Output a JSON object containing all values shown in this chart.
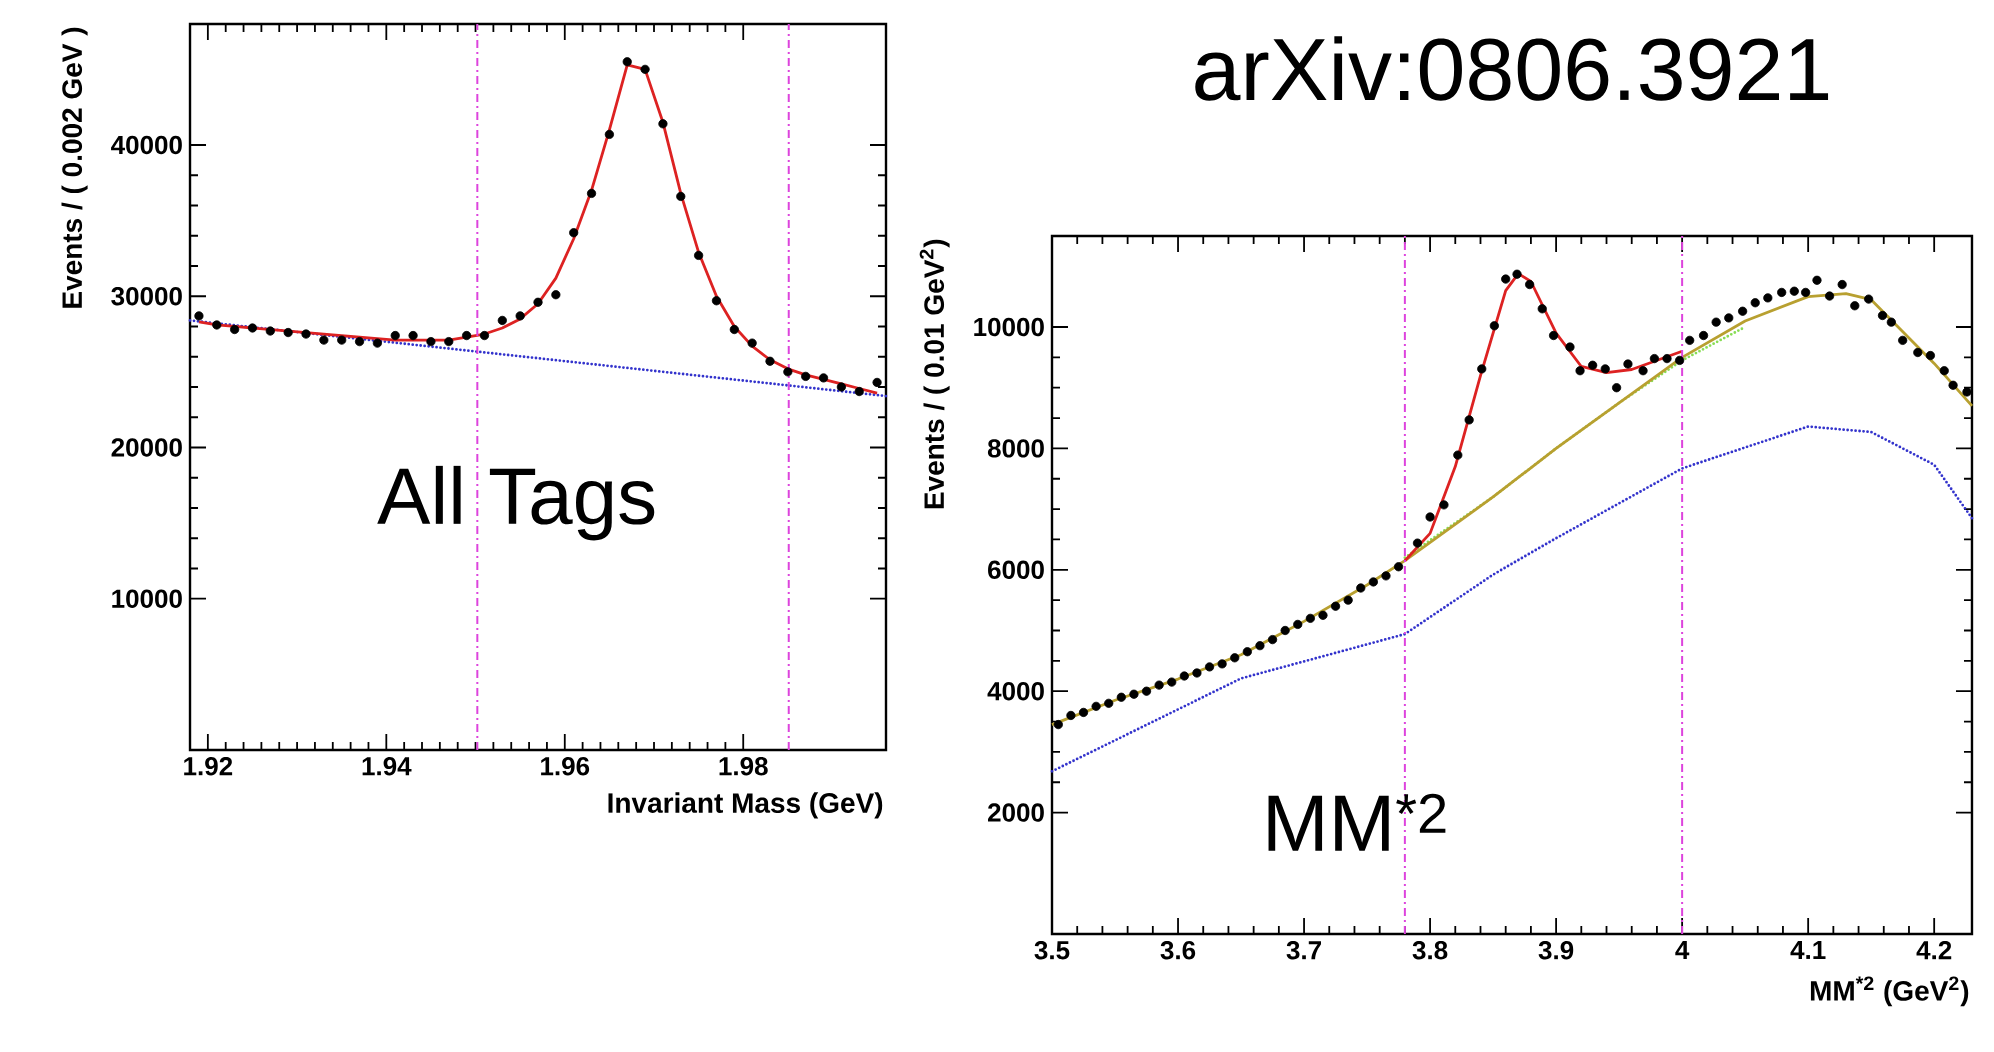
{
  "chart_data": [
    {
      "type": "scatter",
      "xlabel": "Invariant Mass (GeV)",
      "ylabel": "Events / ( 0.002 GeV )",
      "xlim": [
        1.918,
        1.996
      ],
      "ylim": [
        0,
        48000
      ],
      "xticks": [
        1.92,
        1.94,
        1.96,
        1.98
      ],
      "yticks": [
        10000,
        20000,
        30000,
        40000
      ],
      "annotations": [
        "All Tags"
      ],
      "ref_lines": [
        {
          "axis": "x",
          "value": 1.9502,
          "color": "#dd44dd",
          "line_style": "dashed"
        },
        {
          "axis": "x",
          "value": 1.9851,
          "color": "#dd44dd",
          "line_style": "dashed"
        }
      ],
      "series": [
        {
          "type": "line",
          "color": "#3333cc",
          "line_style": "dotted",
          "marker": "none",
          "x": [
            1.918,
            1.957,
            1.996
          ],
          "values": [
            28400,
            25900,
            23400
          ]
        },
        {
          "type": "line",
          "color": "#dd2222",
          "line_style": "solid",
          "marker": "none",
          "x": [
            1.919,
            1.921,
            1.923,
            1.925,
            1.927,
            1.929,
            1.931,
            1.933,
            1.935,
            1.937,
            1.939,
            1.941,
            1.943,
            1.945,
            1.947,
            1.949,
            1.951,
            1.953,
            1.955,
            1.957,
            1.959,
            1.961,
            1.963,
            1.965,
            1.967,
            1.969,
            1.971,
            1.973,
            1.975,
            1.977,
            1.979,
            1.981,
            1.983,
            1.985,
            1.987,
            1.989,
            1.991,
            1.993,
            1.995
          ],
          "values": [
            28300,
            28100,
            28000,
            27900,
            27800,
            27700,
            27600,
            27500,
            27400,
            27300,
            27200,
            27100,
            27100,
            27100,
            27100,
            27300,
            27500,
            27900,
            28500,
            29500,
            31200,
            33800,
            37000,
            41000,
            45300,
            45000,
            41500,
            36800,
            32900,
            30000,
            28000,
            26700,
            25800,
            25200,
            24800,
            24500,
            24200,
            23900,
            23600
          ]
        },
        {
          "type": "scatter",
          "color": "#000000",
          "marker": "circle",
          "x": [
            1.919,
            1.921,
            1.923,
            1.925,
            1.927,
            1.929,
            1.931,
            1.933,
            1.935,
            1.937,
            1.939,
            1.941,
            1.943,
            1.945,
            1.947,
            1.949,
            1.951,
            1.953,
            1.955,
            1.957,
            1.959,
            1.961,
            1.963,
            1.965,
            1.967,
            1.969,
            1.971,
            1.973,
            1.975,
            1.977,
            1.979,
            1.981,
            1.983,
            1.985,
            1.987,
            1.989,
            1.991,
            1.993,
            1.995
          ],
          "values": [
            28700,
            28100,
            27800,
            27900,
            27700,
            27600,
            27500,
            27100,
            27100,
            27000,
            26900,
            27400,
            27400,
            27000,
            27000,
            27400,
            27400,
            28400,
            28700,
            29600,
            30100,
            34200,
            36800,
            40700,
            45500,
            45000,
            41400,
            36600,
            32700,
            29700,
            27800,
            26900,
            25700,
            25000,
            24700,
            24600,
            24000,
            23700,
            24300
          ]
        }
      ]
    },
    {
      "type": "scatter",
      "xlabel": "MM$^{*2}$  (GeV$^{2}$)",
      "ylabel": "Events / ( 0.01 GeV$^{2}$)",
      "xlim": [
        3.5,
        4.23
      ],
      "ylim": [
        0,
        11500
      ],
      "xticks": [
        3.5,
        3.6,
        3.7,
        3.8,
        3.9,
        4,
        4.1,
        4.2
      ],
      "yticks": [
        2000,
        4000,
        6000,
        8000,
        10000
      ],
      "annotations": [
        "MM$^{*2}$",
        "arXiv:0806.3921"
      ],
      "ref_lines": [
        {
          "axis": "x",
          "value": 3.78,
          "color": "#dd44dd",
          "line_style": "dashed"
        },
        {
          "axis": "x",
          "value": 4.0,
          "color": "#dd44dd",
          "line_style": "dashed"
        }
      ],
      "series": [
        {
          "type": "line",
          "color": "#3333cc",
          "line_style": "dotted",
          "marker": "none",
          "x": [
            3.5,
            3.65,
            3.78,
            3.85,
            3.9,
            4.0,
            4.1,
            4.15,
            4.2,
            4.23
          ],
          "values": [
            2680,
            4210,
            4940,
            5920,
            6520,
            7670,
            8360,
            8270,
            7730,
            6850
          ]
        },
        {
          "type": "line",
          "color": "#88dd55",
          "line_style": "dotted",
          "marker": "none",
          "x": [
            3.78,
            3.85,
            3.9,
            3.95,
            4.0,
            4.05
          ],
          "values": [
            6200,
            7200,
            8000,
            8750,
            9450,
            10000
          ]
        },
        {
          "type": "line",
          "color": "#b8a030",
          "line_style": "solid",
          "marker": "none",
          "x": [
            3.5,
            3.55,
            3.6,
            3.65,
            3.7,
            3.75,
            3.78,
            3.85,
            3.9,
            3.95,
            4.0,
            4.05,
            4.1,
            4.13,
            4.15,
            4.2,
            4.23
          ],
          "values": [
            3450,
            3850,
            4200,
            4600,
            5150,
            5750,
            6150,
            7200,
            8000,
            8750,
            9500,
            10100,
            10500,
            10550,
            10450,
            9400,
            8700
          ]
        },
        {
          "type": "line",
          "color": "#dd2222",
          "line_style": "solid",
          "marker": "none",
          "x": [
            3.78,
            3.8,
            3.82,
            3.84,
            3.86,
            3.87,
            3.88,
            3.9,
            3.92,
            3.94,
            3.96,
            3.98,
            4.0
          ],
          "values": [
            6150,
            6600,
            7700,
            9200,
            10600,
            10880,
            10750,
            9900,
            9350,
            9250,
            9300,
            9450,
            9600
          ]
        },
        {
          "type": "scatter",
          "color": "#000000",
          "marker": "circle",
          "x": [
            3.505,
            3.515,
            3.525,
            3.535,
            3.545,
            3.555,
            3.565,
            3.575,
            3.585,
            3.595,
            3.605,
            3.615,
            3.625,
            3.635,
            3.645,
            3.655,
            3.665,
            3.675,
            3.685,
            3.695,
            3.705,
            3.715,
            3.725,
            3.735,
            3.745,
            3.755,
            3.765,
            3.775,
            3.79,
            3.8,
            3.811,
            3.822,
            3.831,
            3.841,
            3.851,
            3.86,
            3.869,
            3.879,
            3.889,
            3.898,
            3.911,
            3.919,
            3.929,
            3.939,
            3.948,
            3.957,
            3.969,
            3.978,
            3.988,
            3.998,
            4.006,
            4.017,
            4.027,
            4.037,
            4.048,
            4.058,
            4.068,
            4.079,
            4.089,
            4.098,
            4.107,
            4.117,
            4.127,
            4.137,
            4.148,
            4.159,
            4.166,
            4.175,
            4.187,
            4.197,
            4.208,
            4.215,
            4.226
          ],
          "values": [
            3450,
            3600,
            3650,
            3750,
            3800,
            3900,
            3950,
            4000,
            4100,
            4150,
            4250,
            4300,
            4400,
            4450,
            4550,
            4650,
            4750,
            4850,
            5000,
            5100,
            5200,
            5250,
            5400,
            5500,
            5700,
            5800,
            5900,
            6050,
            6440,
            6870,
            7070,
            7890,
            8470,
            9310,
            10020,
            10790,
            10870,
            10700,
            10300,
            9860,
            9670,
            9280,
            9370,
            9310,
            9000,
            9390,
            9280,
            9480,
            9480,
            9450,
            9780,
            9860,
            10080,
            10150,
            10260,
            10400,
            10480,
            10570,
            10590,
            10570,
            10770,
            10510,
            10700,
            10350,
            10460,
            10190,
            10080,
            9780,
            9580,
            9530,
            9280,
            9040,
            8930
          ]
        }
      ]
    }
  ]
}
